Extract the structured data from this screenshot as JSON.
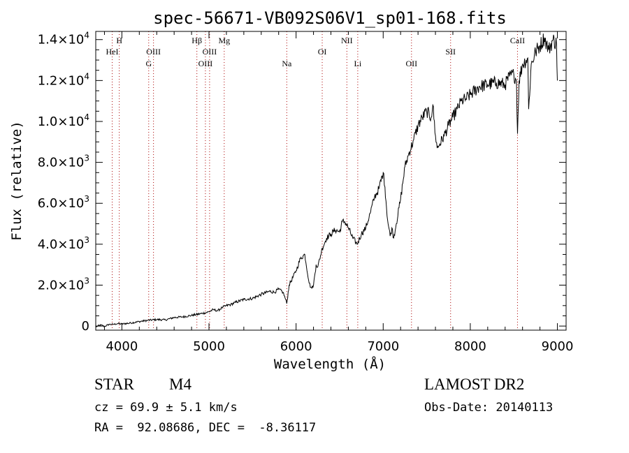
{
  "chart_data": {
    "type": "line",
    "title": "spec-56671-VB092S06V1_sp01-168.fits",
    "xlabel": "Wavelength (Å)",
    "ylabel": "Flux (relative)",
    "xlim": [
      3700,
      9100
    ],
    "ylim": [
      -200,
      14400
    ],
    "xticks": [
      {
        "value": 4000,
        "label": "4000"
      },
      {
        "value": 5000,
        "label": "5000"
      },
      {
        "value": 6000,
        "label": "6000"
      },
      {
        "value": 7000,
        "label": "7000"
      },
      {
        "value": 8000,
        "label": "8000"
      },
      {
        "value": 9000,
        "label": "9000"
      }
    ],
    "yticks": [
      {
        "value": 0,
        "mant": "0",
        "exp": ""
      },
      {
        "value": 2000,
        "mant": "2.0×10",
        "exp": "3"
      },
      {
        "value": 4000,
        "mant": "4.0×10",
        "exp": "3"
      },
      {
        "value": 6000,
        "mant": "6.0×10",
        "exp": "3"
      },
      {
        "value": 8000,
        "mant": "8.0×10",
        "exp": "3"
      },
      {
        "value": 10000,
        "mant": "1.0×10",
        "exp": "4"
      },
      {
        "value": 12000,
        "mant": "1.2×10",
        "exp": "4"
      },
      {
        "value": 14000,
        "mant": "1.4×10",
        "exp": "4"
      }
    ],
    "lines": [
      {
        "name": "HeI",
        "wavelength": 3889,
        "row": 2
      },
      {
        "name": "H",
        "wavelength": 3970,
        "row": 1
      },
      {
        "name": "G",
        "wavelength": 4308,
        "row": 3
      },
      {
        "name": "OIII",
        "wavelength": 4363,
        "row": 2
      },
      {
        "name": "Hβ",
        "wavelength": 4861,
        "row": 1
      },
      {
        "name": "OIII",
        "wavelength": 4959,
        "row": 3
      },
      {
        "name": "OIII",
        "wavelength": 5007,
        "row": 2
      },
      {
        "name": "Mg",
        "wavelength": 5175,
        "row": 1
      },
      {
        "name": "Na",
        "wavelength": 5893,
        "row": 3
      },
      {
        "name": "OI",
        "wavelength": 6300,
        "row": 2
      },
      {
        "name": "NII",
        "wavelength": 6583,
        "row": 1
      },
      {
        "name": "Li",
        "wavelength": 6708,
        "row": 3
      },
      {
        "name": "OII",
        "wavelength": 7325,
        "row": 3
      },
      {
        "name": "SII",
        "wavelength": 7774,
        "row": 2
      },
      {
        "name": "CaII",
        "wavelength": 8542,
        "row": 1
      }
    ],
    "series": [
      {
        "x": [
          3700,
          3720,
          3760,
          3800,
          3850,
          3900,
          3950,
          4000,
          4100,
          4200,
          4300,
          4400,
          4500,
          4600,
          4700,
          4800,
          4900,
          4960,
          5000,
          5050,
          5100,
          5150,
          5200,
          5250,
          5300,
          5400,
          5500,
          5600,
          5700,
          5750,
          5800,
          5850,
          5880,
          5893,
          5920,
          6000,
          6050,
          6100,
          6150,
          6170,
          6180,
          6200,
          6230,
          6250,
          6300,
          6350,
          6400,
          6450,
          6500,
          6530,
          6560,
          6600,
          6650,
          6700,
          6750,
          6800,
          6850,
          6900,
          6950,
          7000,
          7020,
          7050,
          7080,
          7100,
          7120,
          7150,
          7200,
          7250,
          7300,
          7350,
          7400,
          7450,
          7500,
          7550,
          7570,
          7600,
          7620,
          7650,
          7700,
          7750,
          7800,
          7850,
          7900,
          7950,
          8000,
          8100,
          8200,
          8300,
          8400,
          8450,
          8500,
          8530,
          8542,
          8560,
          8600,
          8660,
          8670,
          8700,
          8750,
          8800,
          8850,
          8900,
          8950,
          8990,
          9000
        ],
        "y": [
          -50,
          0,
          50,
          -20,
          80,
          80,
          120,
          100,
          150,
          220,
          280,
          320,
          300,
          420,
          450,
          520,
          600,
          650,
          700,
          800,
          750,
          900,
          1000,
          1050,
          1150,
          1300,
          1350,
          1550,
          1700,
          1650,
          1800,
          1650,
          1300,
          1100,
          2000,
          2700,
          3300,
          3500,
          2100,
          1900,
          1850,
          2000,
          3000,
          2900,
          3800,
          4300,
          4500,
          4700,
          4600,
          5100,
          5100,
          4800,
          4300,
          4000,
          4500,
          4800,
          5500,
          6300,
          6700,
          7500,
          6800,
          5200,
          4400,
          4800,
          4300,
          5000,
          6200,
          7800,
          8500,
          9100,
          9800,
          10200,
          10500,
          10200,
          10800,
          9300,
          8700,
          8900,
          9300,
          9800,
          10200,
          10600,
          11000,
          11100,
          11300,
          11700,
          11800,
          11900,
          11800,
          12200,
          12300,
          12000,
          9400,
          12000,
          12800,
          13100,
          10600,
          12800,
          13400,
          13700,
          14100,
          13500,
          14000,
          13800,
          12000
        ]
      }
    ]
  },
  "info": {
    "object_class": "STAR",
    "subclass": "M4",
    "redshift": "cz = 69.9 ± 5.1 km/s",
    "coords": "RA =  92.08686, DEC =  -8.36117",
    "survey": "LAMOST DR2",
    "obs_date": "Obs-Date: 20140113"
  }
}
